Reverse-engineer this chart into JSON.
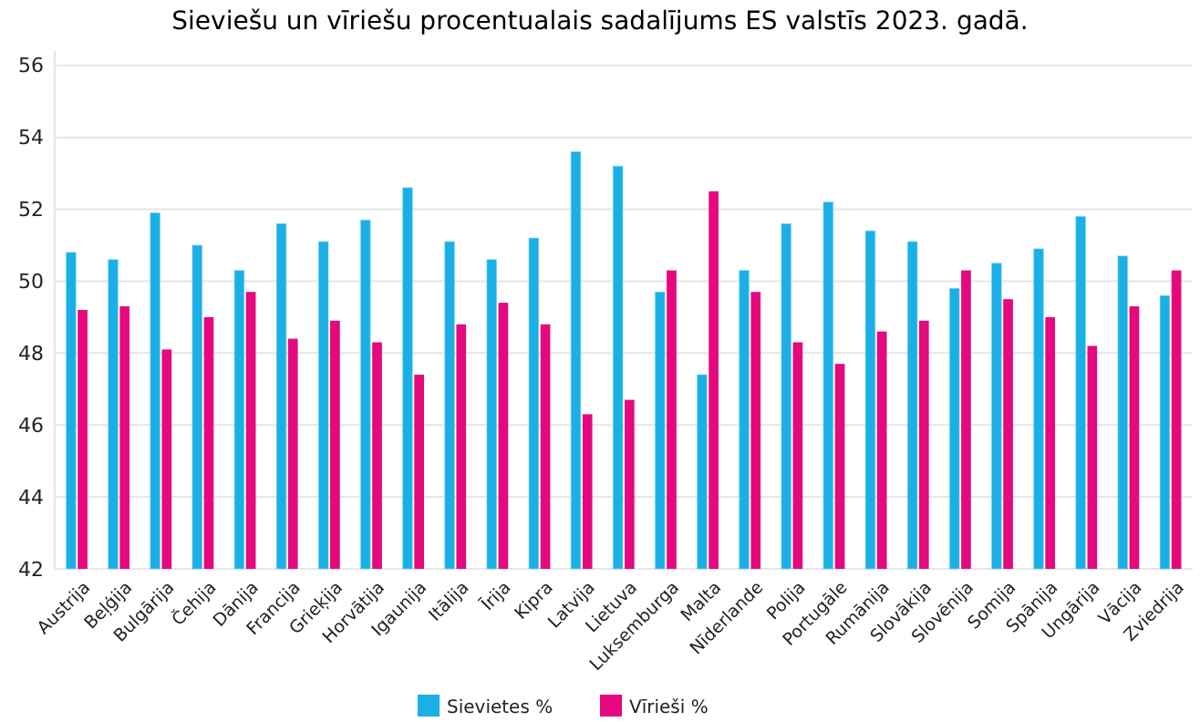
{
  "chart_data": {
    "type": "bar",
    "title": "Sieviešu un vīriešu procentualais sadalījums ES valstīs 2023. gadā.",
    "categories": [
      "Austrija",
      "Beļģija",
      "Bulgārija",
      "Čehija",
      "Dānija",
      "Francija",
      "Grieķija",
      "Horvātija",
      "Igaunija",
      "Itālija",
      "Īrija",
      "Kipra",
      "Latvija",
      "Lietuva",
      "Luksemburga",
      "Malta",
      "Nīderlande",
      "Polija",
      "Portugāle",
      "Rumānija",
      "Slovākija",
      "Slovēnija",
      "Somija",
      "Spānija",
      "Ungārija",
      "Vācija",
      "Zviedrija"
    ],
    "series": [
      {
        "name": "Sievietes %",
        "color": "#1ab0e6",
        "values": [
          50.8,
          50.6,
          51.9,
          51.0,
          50.3,
          51.6,
          51.1,
          51.7,
          52.6,
          51.1,
          50.6,
          51.2,
          53.6,
          53.2,
          49.7,
          47.4,
          50.3,
          51.6,
          52.2,
          51.4,
          51.1,
          49.8,
          50.5,
          50.9,
          51.8,
          50.7,
          49.6
        ]
      },
      {
        "name": "Vīrieši %",
        "color": "#e5087e",
        "values": [
          49.2,
          49.3,
          48.1,
          49.0,
          49.7,
          48.4,
          48.9,
          48.3,
          47.4,
          48.8,
          49.4,
          48.8,
          46.3,
          46.7,
          50.3,
          52.5,
          49.7,
          48.3,
          47.7,
          48.6,
          48.9,
          50.3,
          49.5,
          49.0,
          48.2,
          49.3,
          50.3
        ]
      }
    ],
    "ylim": [
      42,
      56.4
    ],
    "yticks": [
      42,
      44,
      46,
      48,
      50,
      52,
      54,
      56
    ],
    "grid": "y",
    "legend": "bottom"
  }
}
